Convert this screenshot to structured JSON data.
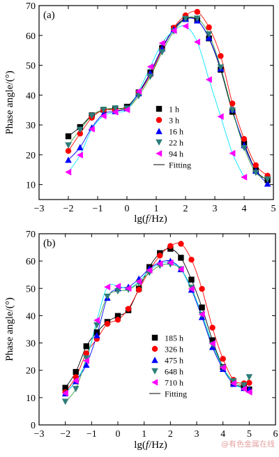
{
  "chart_data": [
    {
      "type": "scatter",
      "panel_label": "(a)",
      "xlabel_prefix": "lg(",
      "xlabel_var": "f",
      "xlabel_suffix": "/Hz)",
      "ylabel": "Phase angle/(°)",
      "xlim": [
        -3,
        5
      ],
      "ylim": [
        5,
        70
      ],
      "xticks": [
        -3,
        -2,
        -1,
        0,
        1,
        2,
        3,
        4,
        5
      ],
      "yticks": [
        10,
        20,
        30,
        40,
        50,
        60,
        70
      ],
      "grid": false,
      "legend_position": "center-right",
      "fitting_label": "Fitting",
      "series": [
        {
          "name": "1 h",
          "marker": "square",
          "color": "#000000",
          "fit_color": "#000000",
          "x": [
            -2.0,
            -1.6,
            -1.2,
            -0.8,
            -0.4,
            0.0,
            0.4,
            0.8,
            1.2,
            1.6,
            2.0,
            2.4,
            2.8,
            3.2,
            3.6,
            4.0,
            4.4,
            4.8
          ],
          "y": [
            26.2,
            29.3,
            33.2,
            35.1,
            35.5,
            36.1,
            40.9,
            47.6,
            55.8,
            62.3,
            65.7,
            65.1,
            59.0,
            48.5,
            34.4,
            23.8,
            14.8,
            11.5
          ]
        },
        {
          "name": "3 h",
          "marker": "circle",
          "color": "#ff0000",
          "fit_color": "#ff0000",
          "x": [
            -2.0,
            -1.6,
            -1.2,
            -0.8,
            -0.4,
            0.0,
            0.4,
            0.8,
            1.2,
            1.6,
            2.0,
            2.4,
            2.8,
            3.2,
            3.6,
            4.0,
            4.4,
            4.8
          ],
          "y": [
            21.3,
            27.1,
            32.4,
            35.0,
            35.0,
            35.5,
            40.5,
            46.8,
            55.2,
            62.6,
            66.7,
            67.9,
            62.7,
            53.1,
            37.2,
            25.3,
            16.5,
            13.0
          ]
        },
        {
          "name": "16 h",
          "marker": "triangle-up",
          "color": "#0000ff",
          "fit_color": "#0000ff",
          "x": [
            -2.0,
            -1.6,
            -1.2,
            -0.8,
            -0.4,
            0.0,
            0.4,
            0.8,
            1.2,
            1.6,
            2.0,
            2.4,
            2.8,
            3.2,
            3.6,
            4.0,
            4.4,
            4.8
          ],
          "y": [
            18.3,
            22.5,
            29.1,
            33.7,
            34.6,
            35.6,
            40.6,
            47.4,
            55.6,
            62.0,
            65.5,
            65.0,
            59.2,
            48.9,
            35.1,
            23.2,
            14.6,
            10.3
          ]
        },
        {
          "name": "22 h",
          "marker": "triangle-down",
          "color": "#2e7d7a",
          "fit_color": "#3aa33a",
          "x": [
            -2.0,
            -1.6,
            -1.2,
            -0.8,
            -0.4,
            0.0,
            0.4,
            0.8,
            1.2,
            1.6,
            2.0,
            2.4,
            2.8,
            3.2,
            3.6,
            4.0,
            4.4,
            4.8
          ],
          "y": [
            23.2,
            28.4,
            33.0,
            35.1,
            35.6,
            35.5,
            39.7,
            46.2,
            54.4,
            61.4,
            65.6,
            65.7,
            60.4,
            49.3,
            34.9,
            22.3,
            14.0,
            11.8
          ]
        },
        {
          "name": "94 h",
          "marker": "triangle-left",
          "color": "#ff00ff",
          "fit_color": "#00e5ff",
          "x": [
            -2.0,
            -1.6,
            -1.2,
            -0.8,
            -0.4,
            0.0,
            0.4,
            0.8,
            1.2,
            1.6,
            2.0,
            2.4,
            2.8,
            3.2,
            3.6,
            4.0
          ],
          "y": [
            14.2,
            19.9,
            28.6,
            33.0,
            34.3,
            35.1,
            41.3,
            49.5,
            57.4,
            61.6,
            63.1,
            57.8,
            45.2,
            32.8,
            20.5,
            12.5
          ]
        }
      ]
    },
    {
      "type": "scatter",
      "panel_label": "(b)",
      "xlabel_prefix": "lg(",
      "xlabel_var": "f",
      "xlabel_suffix": "/Hz)",
      "ylabel": "Phase angle/(°)",
      "xlim": [
        -3,
        6
      ],
      "ylim": [
        0,
        70
      ],
      "xticks": [
        -3,
        -2,
        -1,
        0,
        1,
        2,
        3,
        4,
        5,
        6
      ],
      "yticks": [
        0,
        10,
        20,
        30,
        40,
        50,
        60,
        70
      ],
      "grid": false,
      "legend_position": "center-right",
      "fitting_label": "Fitting",
      "series": [
        {
          "name": "185 h",
          "marker": "square",
          "color": "#000000",
          "fit_color": "#000000",
          "x": [
            -2.0,
            -1.6,
            -1.2,
            -0.8,
            -0.4,
            0.0,
            0.4,
            0.8,
            1.2,
            1.6,
            2.0,
            2.4,
            2.8,
            3.2,
            3.6,
            4.0,
            4.4,
            4.8,
            5.0
          ],
          "y": [
            13.6,
            19.4,
            28.8,
            33.9,
            37.7,
            39.9,
            42.0,
            49.9,
            57.8,
            62.9,
            64.5,
            61.2,
            53.2,
            43.0,
            31.0,
            21.2,
            15.2,
            14.0,
            13.0
          ]
        },
        {
          "name": "326 h",
          "marker": "circle",
          "color": "#ff0000",
          "fit_color": "#ff0000",
          "x": [
            -2.0,
            -1.6,
            -1.2,
            -0.8,
            -0.4,
            0.0,
            0.4,
            0.8,
            1.2,
            1.6,
            2.0,
            2.4,
            2.8,
            3.2,
            3.6,
            4.0,
            4.4,
            4.8,
            5.0
          ],
          "y": [
            12.0,
            17.5,
            26.2,
            31.5,
            37.0,
            38.5,
            42.5,
            49.5,
            56.5,
            62.0,
            65.5,
            66.3,
            60.5,
            49.8,
            35.6,
            24.2,
            16.5,
            15.2,
            15.4
          ]
        },
        {
          "name": "475 h",
          "marker": "triangle-up",
          "color": "#0000ff",
          "fit_color": "#0000ff",
          "x": [
            -2.0,
            -1.6,
            -1.2,
            -0.8,
            -0.4,
            0.0,
            0.4,
            0.8,
            1.2,
            1.6,
            2.0,
            2.4,
            2.8,
            3.2,
            3.6,
            4.0,
            4.4,
            4.8,
            5.0
          ],
          "y": [
            11.5,
            16.0,
            22.0,
            32.8,
            46.5,
            50.0,
            50.5,
            53.5,
            57.2,
            59.5,
            60.0,
            57.0,
            49.5,
            39.5,
            28.5,
            20.5,
            15.0,
            13.5,
            13.0
          ]
        },
        {
          "name": "648 h",
          "marker": "triangle-down",
          "color": "#2e7d7a",
          "fit_color": "#3aa33a",
          "x": [
            -2.0,
            -1.6,
            -1.2,
            -0.8,
            -0.4,
            0.0,
            0.4,
            0.8,
            1.2,
            1.6,
            2.0,
            2.4,
            2.8,
            3.2,
            3.6,
            4.0,
            4.4,
            4.8,
            5.0
          ],
          "y": [
            8.5,
            13.2,
            24.4,
            36.5,
            47.0,
            49.0,
            49.5,
            52.0,
            55.7,
            58.3,
            58.8,
            57.0,
            50.2,
            40.3,
            29.4,
            21.0,
            16.0,
            14.5,
            17.5
          ]
        },
        {
          "name": "710 h",
          "marker": "triangle-left",
          "color": "#ff00ff",
          "fit_color": "#00e5ff",
          "x": [
            -2.0,
            -1.6,
            -1.2,
            -0.8,
            -0.4,
            0.0,
            0.4,
            0.8,
            1.2,
            1.6,
            2.0,
            2.4,
            2.8,
            3.2,
            3.6,
            4.0,
            4.4,
            4.8,
            5.0
          ],
          "y": [
            11.6,
            16.2,
            23.5,
            38.3,
            50.5,
            50.8,
            50.0,
            52.5,
            56.6,
            59.0,
            59.4,
            57.0,
            49.8,
            40.5,
            29.8,
            21.0,
            15.2,
            13.2,
            12.0
          ]
        }
      ]
    }
  ],
  "watermark": "@有色金属在线"
}
